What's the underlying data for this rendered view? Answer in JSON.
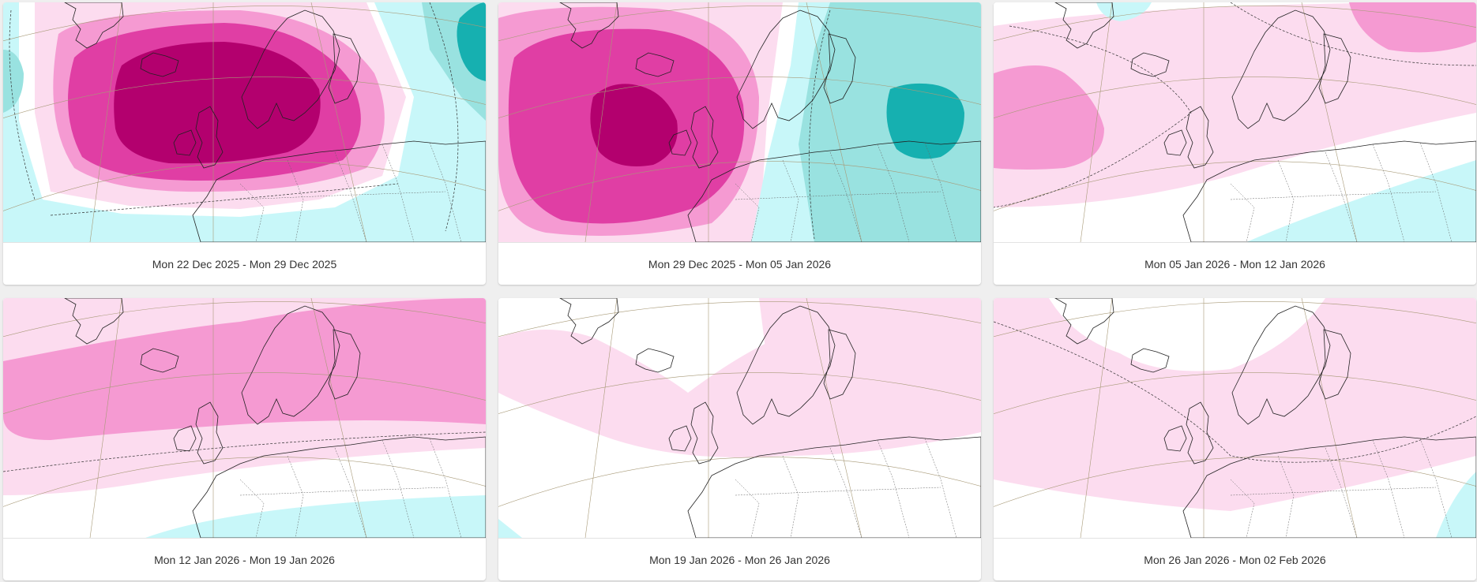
{
  "palette": {
    "pos3": "#b3006e",
    "pos2": "#e03ea4",
    "pos1": "#f59ad2",
    "pos0": "#fcdcef",
    "neg0": "#c8f7f9",
    "neg1": "#99e2e0",
    "neg2": "#16b0b0",
    "land": "#ffffff",
    "coast": "#222222"
  },
  "panels": [
    {
      "caption": "Mon 22 Dec 2025 - Mon 29 Dec 2025"
    },
    {
      "caption": "Mon 29 Dec 2025 - Mon 05 Jan 2026"
    },
    {
      "caption": "Mon 05 Jan 2026 - Mon 12 Jan 2026"
    },
    {
      "caption": "Mon 12 Jan 2026 - Mon 19 Jan 2026"
    },
    {
      "caption": "Mon 19 Jan 2026 - Mon 26 Jan 2026"
    },
    {
      "caption": "Mon 26 Jan 2026 - Mon 02 Feb 2026"
    }
  ]
}
